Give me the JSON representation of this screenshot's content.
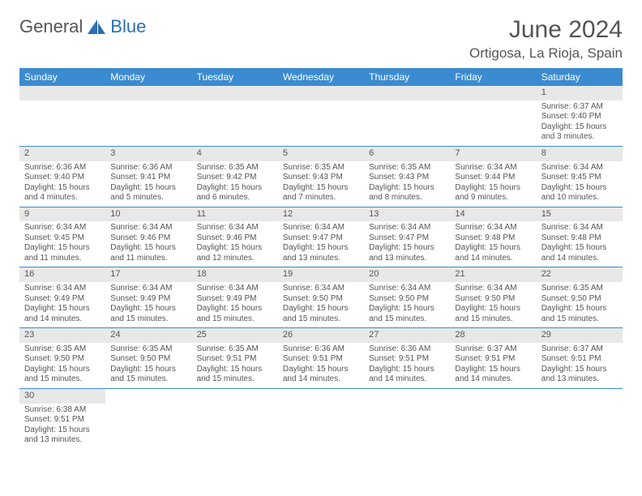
{
  "brand": {
    "part1": "General",
    "part2": "Blue"
  },
  "title": "June 2024",
  "location": "Ortigosa, La Rioja, Spain",
  "colors": {
    "header_bg": "#3b8bd0",
    "header_text": "#ffffff",
    "daynum_bg": "#e8e8e8",
    "cell_border": "#3b8bd0",
    "text": "#555555",
    "brand_gray": "#555555",
    "brand_blue": "#2b6fb3",
    "page_bg": "#ffffff"
  },
  "typography": {
    "title_fontsize": 30,
    "location_fontsize": 17,
    "th_fontsize": 12,
    "cell_fontsize": 10,
    "daynum_fontsize": 11
  },
  "weekdays": [
    "Sunday",
    "Monday",
    "Tuesday",
    "Wednesday",
    "Thursday",
    "Friday",
    "Saturday"
  ],
  "labels": {
    "sunrise": "Sunrise:",
    "sunset": "Sunset:",
    "daylight": "Daylight:"
  },
  "weeks": [
    [
      null,
      null,
      null,
      null,
      null,
      null,
      {
        "n": "1",
        "sr": "6:37 AM",
        "ss": "9:40 PM",
        "dl": "15 hours and 3 minutes."
      }
    ],
    [
      {
        "n": "2",
        "sr": "6:36 AM",
        "ss": "9:40 PM",
        "dl": "15 hours and 4 minutes."
      },
      {
        "n": "3",
        "sr": "6:36 AM",
        "ss": "9:41 PM",
        "dl": "15 hours and 5 minutes."
      },
      {
        "n": "4",
        "sr": "6:35 AM",
        "ss": "9:42 PM",
        "dl": "15 hours and 6 minutes."
      },
      {
        "n": "5",
        "sr": "6:35 AM",
        "ss": "9:43 PM",
        "dl": "15 hours and 7 minutes."
      },
      {
        "n": "6",
        "sr": "6:35 AM",
        "ss": "9:43 PM",
        "dl": "15 hours and 8 minutes."
      },
      {
        "n": "7",
        "sr": "6:34 AM",
        "ss": "9:44 PM",
        "dl": "15 hours and 9 minutes."
      },
      {
        "n": "8",
        "sr": "6:34 AM",
        "ss": "9:45 PM",
        "dl": "15 hours and 10 minutes."
      }
    ],
    [
      {
        "n": "9",
        "sr": "6:34 AM",
        "ss": "9:45 PM",
        "dl": "15 hours and 11 minutes."
      },
      {
        "n": "10",
        "sr": "6:34 AM",
        "ss": "9:46 PM",
        "dl": "15 hours and 11 minutes."
      },
      {
        "n": "11",
        "sr": "6:34 AM",
        "ss": "9:46 PM",
        "dl": "15 hours and 12 minutes."
      },
      {
        "n": "12",
        "sr": "6:34 AM",
        "ss": "9:47 PM",
        "dl": "15 hours and 13 minutes."
      },
      {
        "n": "13",
        "sr": "6:34 AM",
        "ss": "9:47 PM",
        "dl": "15 hours and 13 minutes."
      },
      {
        "n": "14",
        "sr": "6:34 AM",
        "ss": "9:48 PM",
        "dl": "15 hours and 14 minutes."
      },
      {
        "n": "15",
        "sr": "6:34 AM",
        "ss": "9:48 PM",
        "dl": "15 hours and 14 minutes."
      }
    ],
    [
      {
        "n": "16",
        "sr": "6:34 AM",
        "ss": "9:49 PM",
        "dl": "15 hours and 14 minutes."
      },
      {
        "n": "17",
        "sr": "6:34 AM",
        "ss": "9:49 PM",
        "dl": "15 hours and 15 minutes."
      },
      {
        "n": "18",
        "sr": "6:34 AM",
        "ss": "9:49 PM",
        "dl": "15 hours and 15 minutes."
      },
      {
        "n": "19",
        "sr": "6:34 AM",
        "ss": "9:50 PM",
        "dl": "15 hours and 15 minutes."
      },
      {
        "n": "20",
        "sr": "6:34 AM",
        "ss": "9:50 PM",
        "dl": "15 hours and 15 minutes."
      },
      {
        "n": "21",
        "sr": "6:34 AM",
        "ss": "9:50 PM",
        "dl": "15 hours and 15 minutes."
      },
      {
        "n": "22",
        "sr": "6:35 AM",
        "ss": "9:50 PM",
        "dl": "15 hours and 15 minutes."
      }
    ],
    [
      {
        "n": "23",
        "sr": "6:35 AM",
        "ss": "9:50 PM",
        "dl": "15 hours and 15 minutes."
      },
      {
        "n": "24",
        "sr": "6:35 AM",
        "ss": "9:50 PM",
        "dl": "15 hours and 15 minutes."
      },
      {
        "n": "25",
        "sr": "6:35 AM",
        "ss": "9:51 PM",
        "dl": "15 hours and 15 minutes."
      },
      {
        "n": "26",
        "sr": "6:36 AM",
        "ss": "9:51 PM",
        "dl": "15 hours and 14 minutes."
      },
      {
        "n": "27",
        "sr": "6:36 AM",
        "ss": "9:51 PM",
        "dl": "15 hours and 14 minutes."
      },
      {
        "n": "28",
        "sr": "6:37 AM",
        "ss": "9:51 PM",
        "dl": "15 hours and 14 minutes."
      },
      {
        "n": "29",
        "sr": "6:37 AM",
        "ss": "9:51 PM",
        "dl": "15 hours and 13 minutes."
      }
    ],
    [
      {
        "n": "30",
        "sr": "6:38 AM",
        "ss": "9:51 PM",
        "dl": "15 hours and 13 minutes."
      },
      null,
      null,
      null,
      null,
      null,
      null
    ]
  ]
}
